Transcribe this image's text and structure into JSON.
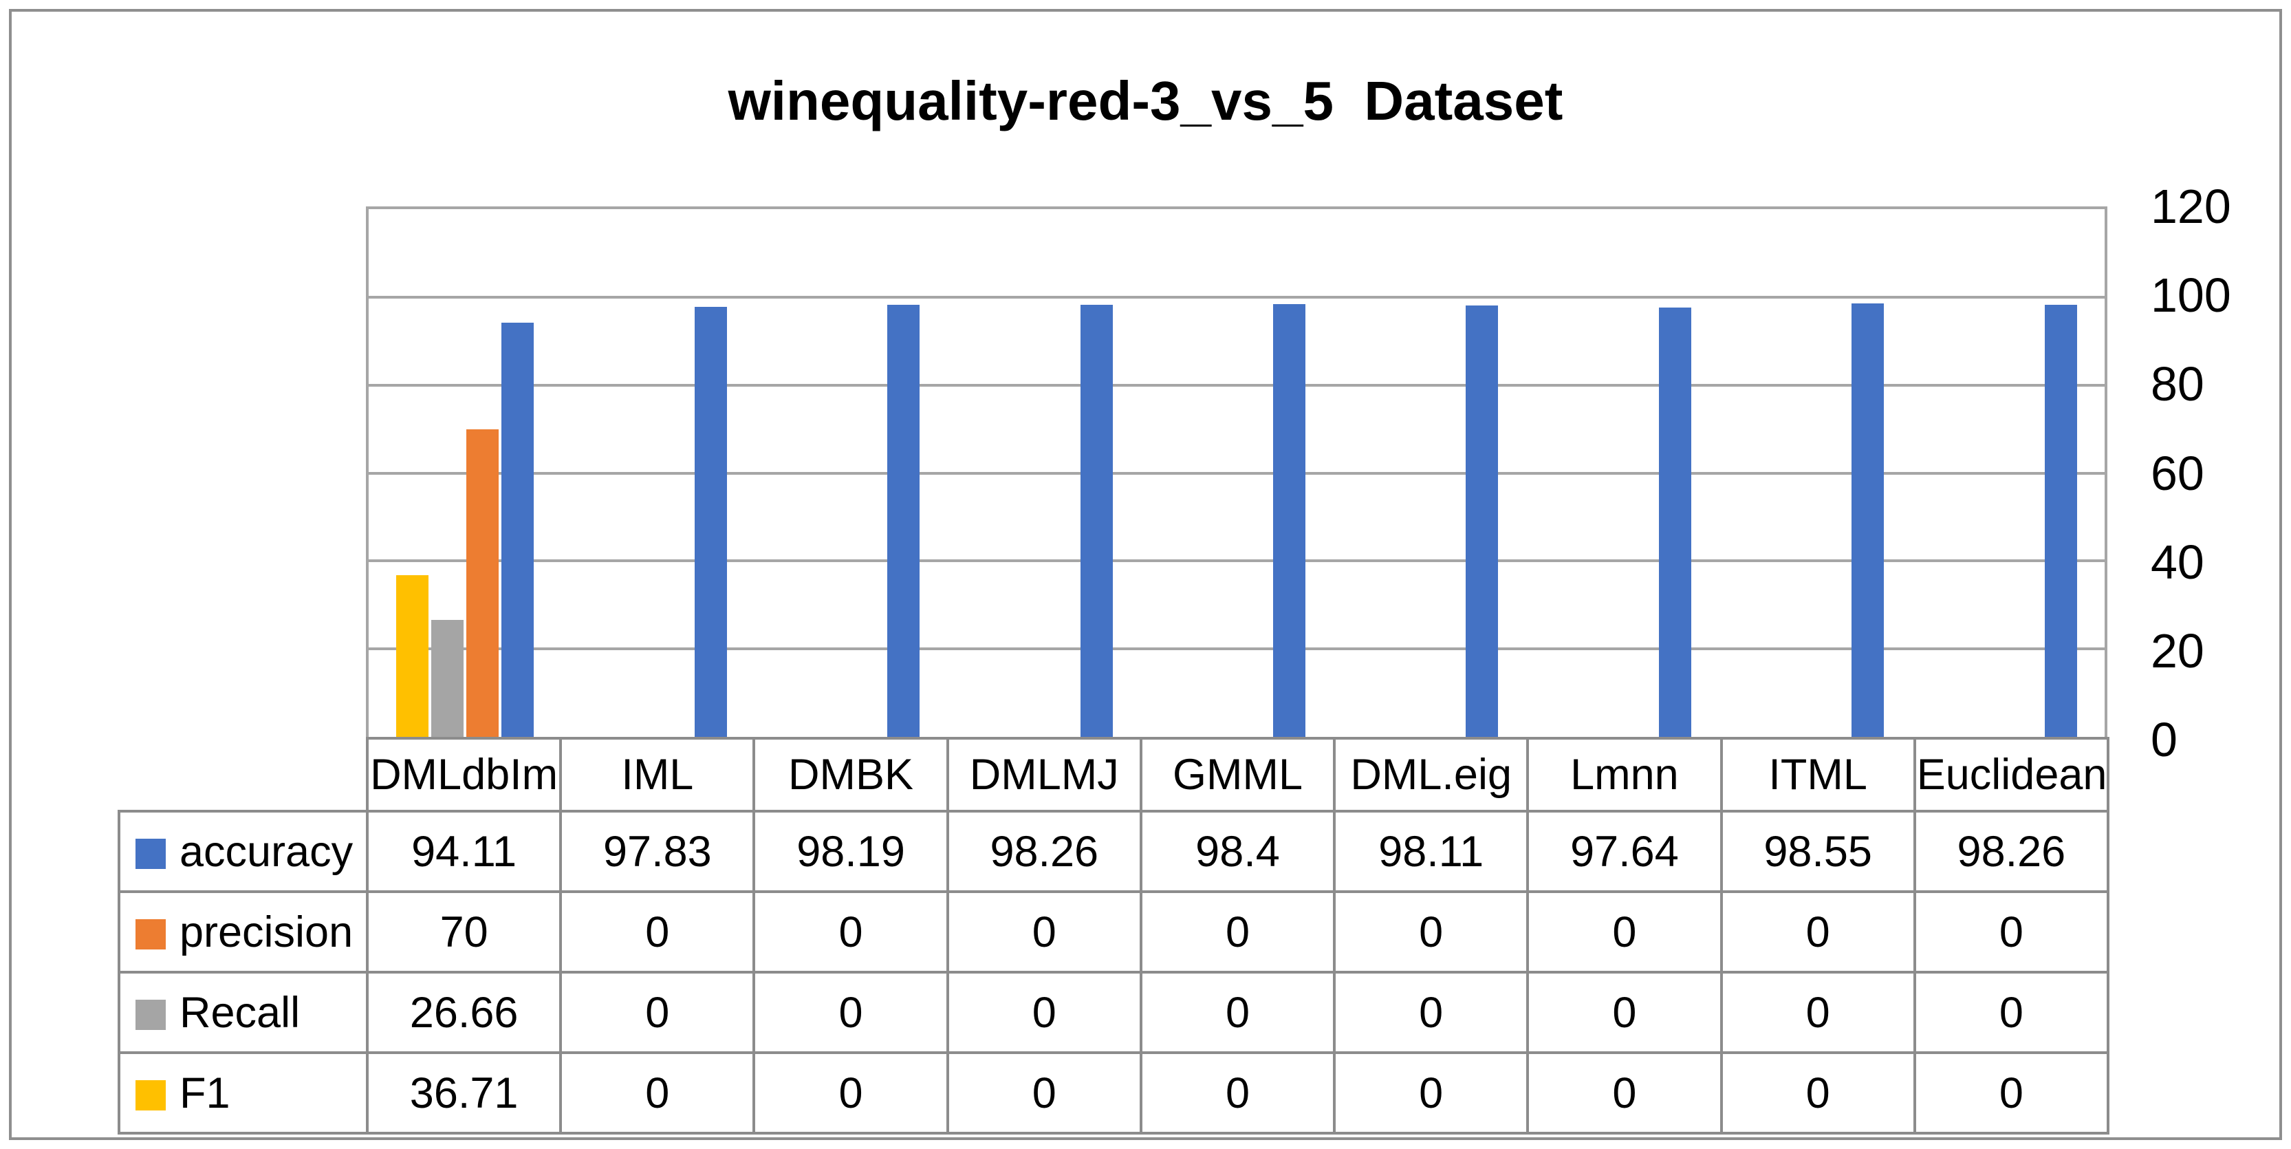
{
  "chart_data": {
    "type": "bar",
    "title": "winequality-red-3_vs_5  Dataset",
    "categories": [
      "DMLdbIm",
      "IML",
      "DMBK",
      "DMLMJ",
      "GMML",
      "DML.eig",
      "Lmnn",
      "ITML",
      "Euclidean"
    ],
    "series": [
      {
        "name": "accuracy",
        "color": "#4472C4",
        "values": [
          94.11,
          97.83,
          98.19,
          98.26,
          98.4,
          98.11,
          97.64,
          98.55,
          98.26
        ]
      },
      {
        "name": "precision",
        "color": "#ED7D31",
        "values": [
          70,
          0,
          0,
          0,
          0,
          0,
          0,
          0,
          0
        ]
      },
      {
        "name": "Recall",
        "color": "#A5A5A5",
        "values": [
          26.66,
          0,
          0,
          0,
          0,
          0,
          0,
          0,
          0
        ]
      },
      {
        "name": "F1",
        "color": "#FFC000",
        "values": [
          36.71,
          0,
          0,
          0,
          0,
          0,
          0,
          0,
          0
        ]
      }
    ],
    "y_axis": {
      "min": 0,
      "max": 120,
      "step": 20,
      "ticks": [
        0,
        20,
        40,
        60,
        80,
        100,
        120
      ],
      "side": "right"
    },
    "grid": true,
    "legend_position": "data-table-left",
    "bar_cluster_order_left_to_right": [
      "F1",
      "Recall",
      "precision",
      "accuracy"
    ]
  },
  "colors": {
    "grid": "#a6a6a6",
    "plot_border": "#a6a6a6",
    "table_border": "#8c8c8c",
    "figure_border": "#8f8f8f",
    "text": "#000000",
    "background": "#ffffff"
  }
}
